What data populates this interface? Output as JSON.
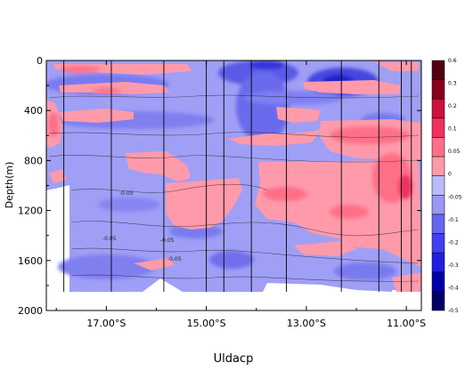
{
  "chart_data": {
    "type": "heatmap",
    "title": "Uldacp",
    "ylabel": "Depth(m)",
    "xlabel": "",
    "xlim": [
      -18.2,
      -10.7
    ],
    "ylim": [
      2000,
      0
    ],
    "x_ticks": [
      -17,
      -15,
      -13,
      -11
    ],
    "x_tick_labels": [
      "17.00°S",
      "15.00°S",
      "13.00°S",
      "11.00°S"
    ],
    "y_ticks": [
      0,
      400,
      800,
      1200,
      1600,
      2000
    ],
    "y_tick_labels": [
      "0",
      "400",
      "800",
      "1200",
      "1600",
      "2000"
    ],
    "colorbar": {
      "levels": [
        -0.5,
        -0.4,
        -0.3,
        -0.2,
        -0.1,
        -0.05,
        0,
        0.05,
        0.1,
        0.2,
        0.3,
        0.6
      ],
      "labels": [
        "-0.5",
        "-0.4",
        "-0.3",
        "-0.2",
        "-0.1",
        "-0.05",
        "0",
        "0.05",
        "0.1",
        "0.2",
        "0.3",
        "0.6"
      ],
      "colors": [
        "#000066",
        "#0000aa",
        "#2020dd",
        "#4040ee",
        "#6666f0",
        "#9999f5",
        "#bbbbfa",
        "#ff9aaa",
        "#ff6f87",
        "#f03060",
        "#cc1040",
        "#880020",
        "#550010"
      ]
    },
    "station_longitudes": [
      -17.85,
      -16.9,
      -15.85,
      -15.0,
      -14.65,
      -14.1,
      -13.4,
      -12.3,
      -11.55,
      -11.1,
      -10.9
    ],
    "data_max_depth": 1850,
    "contour_labels": [
      "-0.05",
      "-0.05",
      "-0.05",
      "-0.05"
    ],
    "grid": false,
    "colormap_note": "blue negative, pink/red positive"
  },
  "colors": {
    "background": "#ffffff",
    "frame": "#000000",
    "station_line": "#000000"
  }
}
